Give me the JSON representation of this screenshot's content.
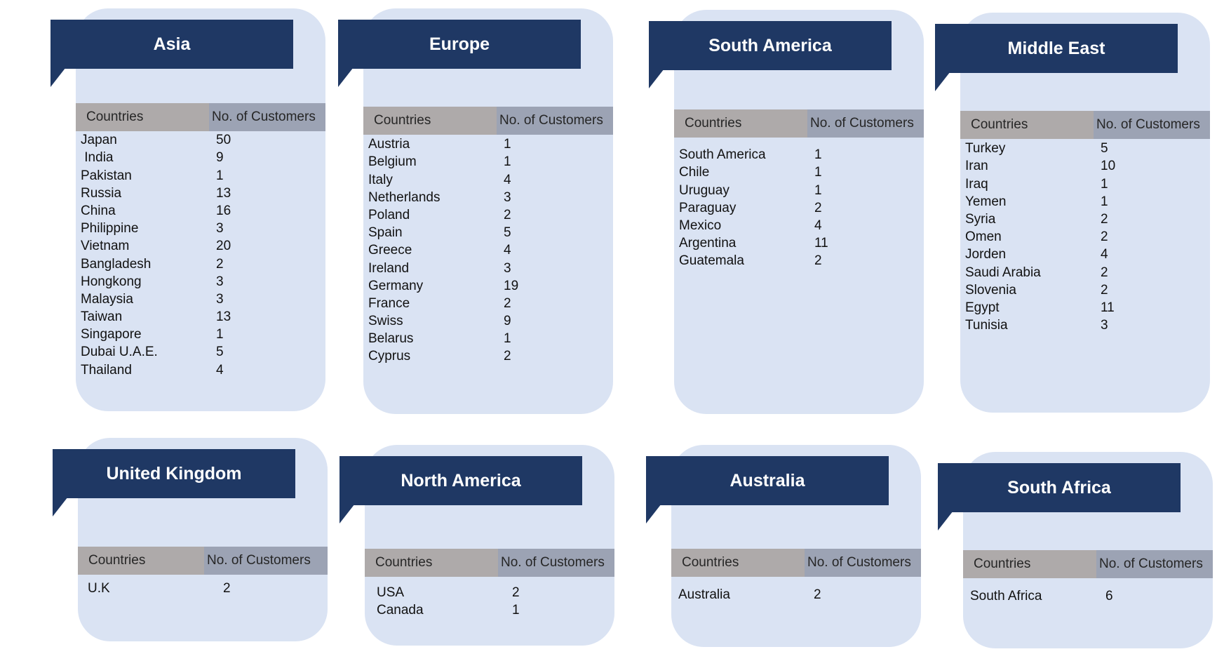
{
  "regions": [
    {
      "id": "asia",
      "title": "Asia",
      "col_country": "Countries",
      "col_customers": "No. of Customers",
      "rows": [
        {
          "country": "Japan",
          "customers": "50"
        },
        {
          "country": " India",
          "customers": "9"
        },
        {
          "country": "Pakistan",
          "customers": "1"
        },
        {
          "country": "Russia",
          "customers": "13"
        },
        {
          "country": "China",
          "customers": "16"
        },
        {
          "country": "Philippine",
          "customers": "3"
        },
        {
          "country": "Vietnam",
          "customers": "20"
        },
        {
          "country": "Bangladesh",
          "customers": "2"
        },
        {
          "country": "Hongkong",
          "customers": "3"
        },
        {
          "country": "Malaysia",
          "customers": "3"
        },
        {
          "country": "Taiwan",
          "customers": "13"
        },
        {
          "country": "Singapore",
          "customers": "1"
        },
        {
          "country": "Dubai U.A.E.",
          "customers": "5"
        },
        {
          "country": "Thailand",
          "customers": "4"
        }
      ]
    },
    {
      "id": "europe",
      "title": "Europe",
      "col_country": "Countries",
      "col_customers": "No. of Customers",
      "rows": [
        {
          "country": "Austria",
          "customers": "1"
        },
        {
          "country": "Belgium",
          "customers": "1"
        },
        {
          "country": "Italy",
          "customers": "4"
        },
        {
          "country": "Netherlands",
          "customers": "3"
        },
        {
          "country": "Poland",
          "customers": "2"
        },
        {
          "country": "Spain",
          "customers": "5"
        },
        {
          "country": "Greece",
          "customers": "4"
        },
        {
          "country": "Ireland",
          "customers": "3"
        },
        {
          "country": "Germany",
          "customers": "19"
        },
        {
          "country": "France",
          "customers": "2"
        },
        {
          "country": "Swiss",
          "customers": "9"
        },
        {
          "country": "Belarus",
          "customers": "1"
        },
        {
          "country": "Cyprus",
          "customers": "2"
        }
      ]
    },
    {
      "id": "south-america",
      "title": "South America",
      "col_country": "Countries",
      "col_customers": "No. of Customers",
      "rows": [
        {
          "country": "South America",
          "customers": "1"
        },
        {
          "country": "Chile",
          "customers": "1"
        },
        {
          "country": "Uruguay",
          "customers": "1"
        },
        {
          "country": "Paraguay",
          "customers": "2"
        },
        {
          "country": "Mexico",
          "customers": "4"
        },
        {
          "country": "Argentina",
          "customers": "11"
        },
        {
          "country": "Guatemala",
          "customers": "2"
        }
      ]
    },
    {
      "id": "middle-east",
      "title": "Middle East",
      "col_country": "Countries",
      "col_customers": "No. of Customers",
      "rows": [
        {
          "country": "Turkey",
          "customers": "5"
        },
        {
          "country": "Iran",
          "customers": "10"
        },
        {
          "country": "Iraq",
          "customers": "1"
        },
        {
          "country": "Yemen",
          "customers": "1"
        },
        {
          "country": "Syria",
          "customers": "2"
        },
        {
          "country": "Omen",
          "customers": "2"
        },
        {
          "country": "Jorden",
          "customers": "4"
        },
        {
          "country": "Saudi Arabia",
          "customers": "2"
        },
        {
          "country": "Slovenia",
          "customers": "2"
        },
        {
          "country": "Egypt",
          "customers": "11"
        },
        {
          "country": "Tunisia",
          "customers": "3"
        }
      ]
    },
    {
      "id": "united-kingdom",
      "title": "United Kingdom",
      "col_country": "Countries",
      "col_customers": "No. of Customers",
      "rows": [
        {
          "country": "U.K",
          "customers": "2"
        }
      ]
    },
    {
      "id": "north-america",
      "title": "North America",
      "col_country": "Countries",
      "col_customers": "No. of Customers",
      "rows": [
        {
          "country": "USA",
          "customers": "2"
        },
        {
          "country": "Canada",
          "customers": "1"
        }
      ]
    },
    {
      "id": "australia",
      "title": "Australia",
      "col_country": "Countries",
      "col_customers": "No. of Customers",
      "rows": [
        {
          "country": "Australia",
          "customers": "2"
        }
      ]
    },
    {
      "id": "south-africa",
      "title": "South Africa",
      "col_country": "Countries",
      "col_customers": "No. of Customers",
      "rows": [
        {
          "country": "South Africa",
          "customers": "6"
        }
      ]
    }
  ]
}
